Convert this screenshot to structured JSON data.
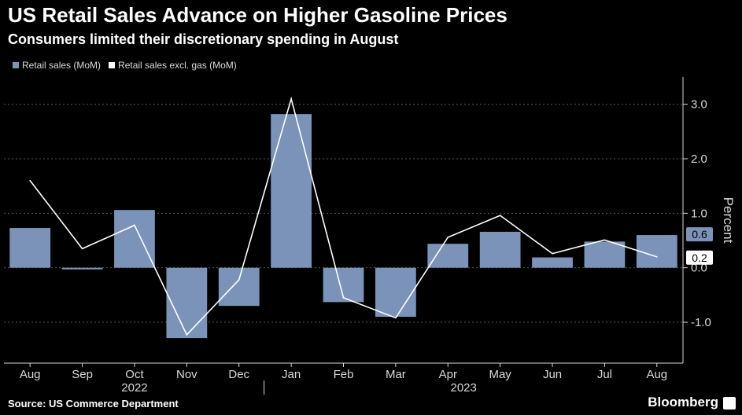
{
  "header": {
    "title": "US Retail Sales Advance on Higher Gasoline Prices",
    "subtitle": "Consumers limited their discretionary spending in August"
  },
  "footer": {
    "source": "Source: US Commerce Department",
    "brand": "Bloomberg"
  },
  "colors": {
    "background": "#000000",
    "bar": "#7b93b8",
    "line": "#ffffff",
    "grid": "#5a5a5a",
    "axis_text": "#d9d9d9"
  },
  "chart_data": {
    "type": "bar",
    "categories": [
      "Aug",
      "Sep",
      "Oct",
      "Nov",
      "Dec",
      "Jan",
      "Feb",
      "Mar",
      "Apr",
      "May",
      "Jun",
      "Jul",
      "Aug"
    ],
    "year_labels": [
      "2022",
      "2023"
    ],
    "series": [
      {
        "name": "Retail sales (MoM)",
        "kind": "bar",
        "values": [
          0.73,
          -0.03,
          1.06,
          -1.29,
          -0.7,
          2.82,
          -0.63,
          -0.9,
          0.44,
          0.66,
          0.19,
          0.48,
          0.6
        ]
      },
      {
        "name": "Retail sales excl. gas (MoM)",
        "kind": "line",
        "values": [
          1.6,
          0.35,
          0.78,
          -1.23,
          -0.22,
          3.1,
          -0.55,
          -0.92,
          0.56,
          0.96,
          0.26,
          0.51,
          0.2
        ]
      }
    ],
    "end_labels": [
      "0.6",
      "0.2"
    ],
    "ylabel": "Percent",
    "yticks": [
      -1.0,
      0.0,
      1.0,
      2.0,
      3.0
    ],
    "ytick_labels": [
      "-1.0",
      "0.0",
      "1.0",
      "2.0",
      "3.0"
    ],
    "ylim": [
      -1.75,
      3.5
    ],
    "grid": true,
    "legend_position": "top-left",
    "y_axis_side": "right"
  }
}
